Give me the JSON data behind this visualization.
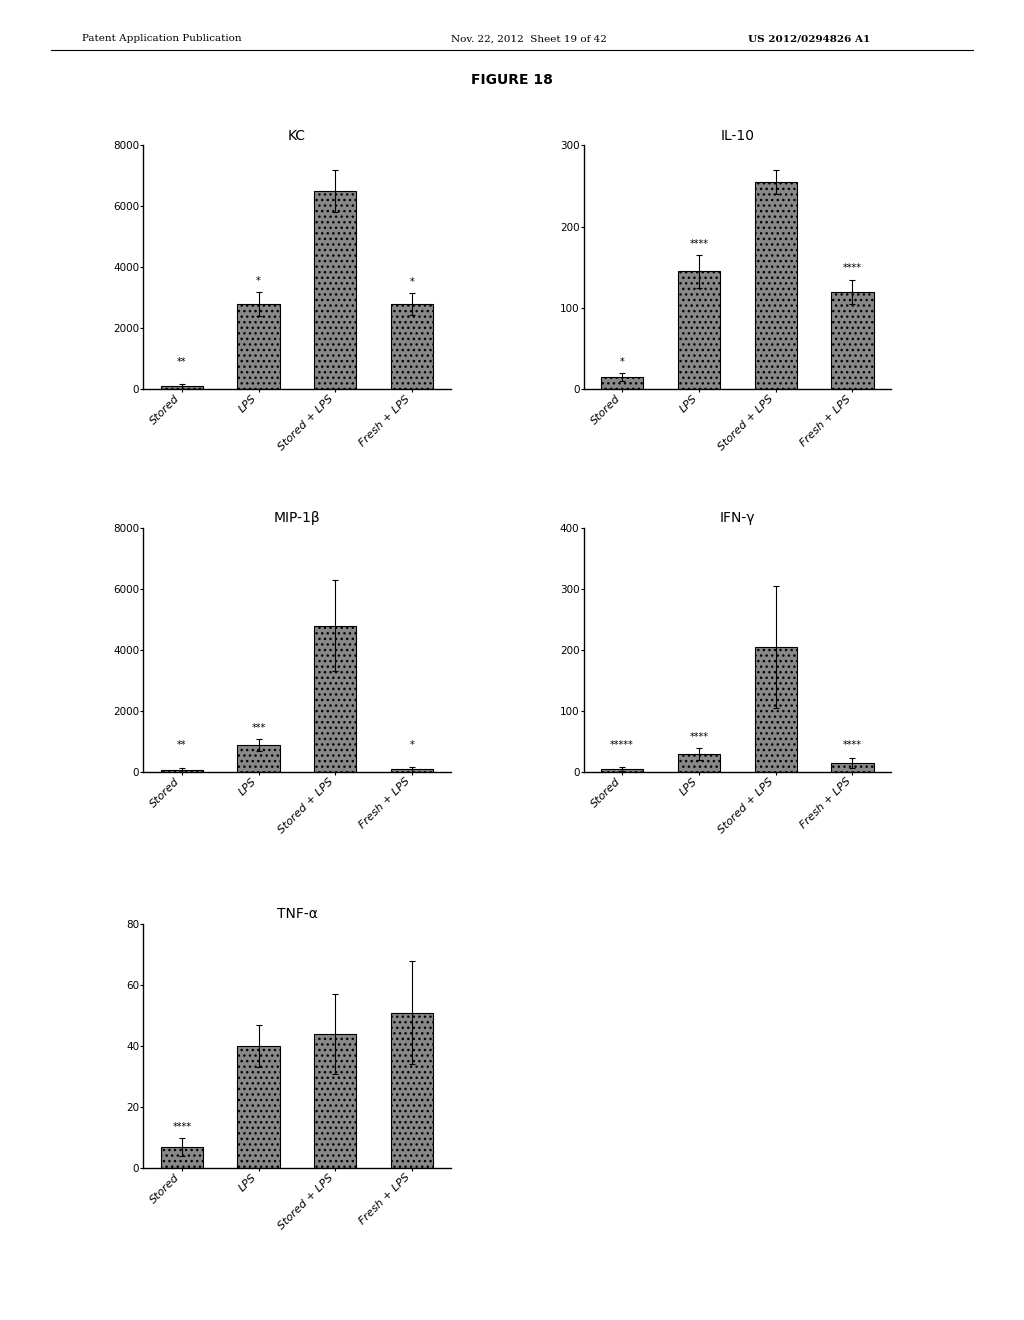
{
  "figure_title": "FIGURE 18",
  "header_left": "Patent Application Publication",
  "header_mid": "Nov. 22, 2012  Sheet 19 of 42",
  "header_right": "US 2012/0294826 A1",
  "bar_color": "#888888",
  "categories": [
    "Stored",
    "LPS",
    "Stored + LPS",
    "Fresh + LPS"
  ],
  "charts": [
    {
      "title": "KC",
      "values": [
        100,
        2800,
        6500,
        2800
      ],
      "errors": [
        80,
        400,
        700,
        350
      ],
      "ylim": [
        0,
        8000
      ],
      "yticks": [
        0,
        2000,
        4000,
        6000,
        8000
      ],
      "annotations": [
        "**",
        "*",
        "",
        "*"
      ],
      "row": 0,
      "col": 0
    },
    {
      "title": "IL-10",
      "values": [
        15,
        145,
        255,
        120
      ],
      "errors": [
        5,
        20,
        15,
        15
      ],
      "ylim": [
        0,
        300
      ],
      "yticks": [
        0,
        100,
        200,
        300
      ],
      "annotations": [
        "*",
        "****",
        "",
        "****"
      ],
      "row": 0,
      "col": 1
    },
    {
      "title": "MIP-1β",
      "values": [
        80,
        900,
        4800,
        100
      ],
      "errors": [
        60,
        200,
        1500,
        80
      ],
      "ylim": [
        0,
        8000
      ],
      "yticks": [
        0,
        2000,
        4000,
        6000,
        8000
      ],
      "annotations": [
        "**",
        "***",
        "",
        "*"
      ],
      "row": 1,
      "col": 0
    },
    {
      "title": "IFN-γ",
      "values": [
        5,
        30,
        205,
        15
      ],
      "errors": [
        3,
        10,
        100,
        8
      ],
      "ylim": [
        0,
        400
      ],
      "yticks": [
        0,
        100,
        200,
        300,
        400
      ],
      "annotations": [
        "*****",
        "****",
        "",
        "****"
      ],
      "row": 1,
      "col": 1
    },
    {
      "title": "TNF-α",
      "values": [
        7,
        40,
        44,
        51
      ],
      "errors": [
        3,
        7,
        13,
        17
      ],
      "ylim": [
        0,
        80
      ],
      "yticks": [
        0,
        20,
        40,
        60,
        80
      ],
      "annotations": [
        "****",
        "",
        "",
        ""
      ],
      "row": 2,
      "col": 0
    }
  ],
  "header_fontsize": 7.5,
  "title_fontsize": 10,
  "bar_title_fontsize": 10,
  "tick_fontsize": 7.5,
  "ann_fontsize": 7,
  "xlabel_fontsize": 8,
  "background_color": "#ffffff"
}
